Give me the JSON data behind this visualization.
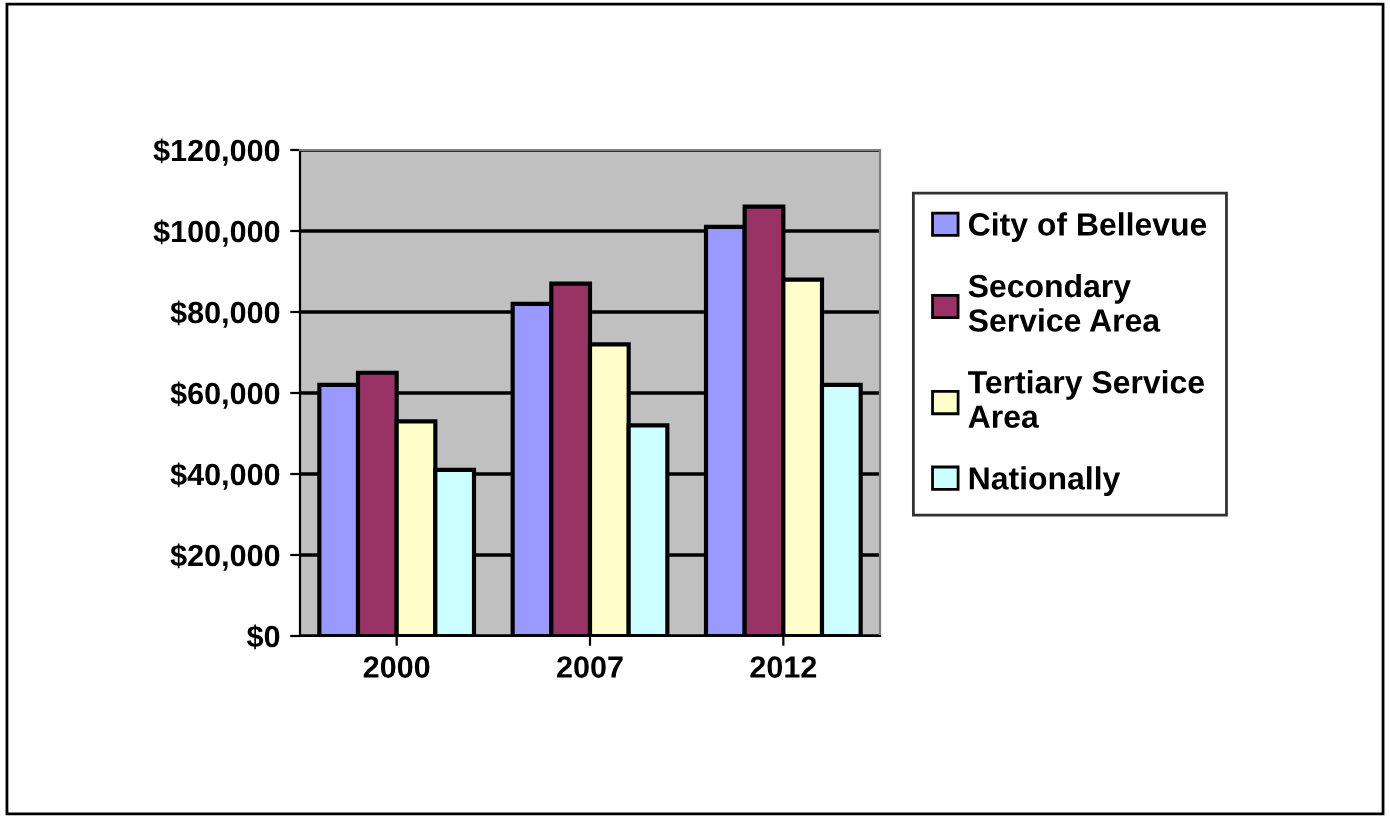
{
  "chart_data": {
    "type": "bar",
    "categories": [
      "2000",
      "2007",
      "2012"
    ],
    "series": [
      {
        "name": "City of Bellevue",
        "color": "#9999ff",
        "values": [
          62000,
          82000,
          101000
        ]
      },
      {
        "name": "Secondary Service Area",
        "color": "#993366",
        "values": [
          65000,
          87000,
          106000
        ]
      },
      {
        "name": "Tertiary Service Area",
        "color": "#ffffcc",
        "values": [
          53000,
          72000,
          88000
        ]
      },
      {
        "name": "Nationally",
        "color": "#ccffff",
        "values": [
          41000,
          52000,
          62000
        ]
      }
    ],
    "ylim": [
      0,
      120000
    ],
    "yticks": [
      {
        "value": 0,
        "label": "$0"
      },
      {
        "value": 20000,
        "label": "$20,000"
      },
      {
        "value": 40000,
        "label": "$40,000"
      },
      {
        "value": 60000,
        "label": "$60,000"
      },
      {
        "value": 80000,
        "label": "$80,000"
      },
      {
        "value": 100000,
        "label": "$100,000"
      },
      {
        "value": 120000,
        "label": "$120,000"
      }
    ],
    "grid": "y",
    "legend": "right"
  }
}
